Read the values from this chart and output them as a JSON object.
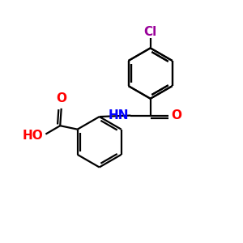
{
  "background": "#ffffff",
  "bond_color": "#000000",
  "bond_lw": 1.6,
  "cl_color": "#990099",
  "o_color": "#ff0000",
  "n_color": "#0000ff",
  "cl_label": "Cl",
  "nh_label": "HN",
  "o_label": "O",
  "ho_label": "HO",
  "figsize": [
    3.0,
    3.0
  ],
  "dpi": 100
}
